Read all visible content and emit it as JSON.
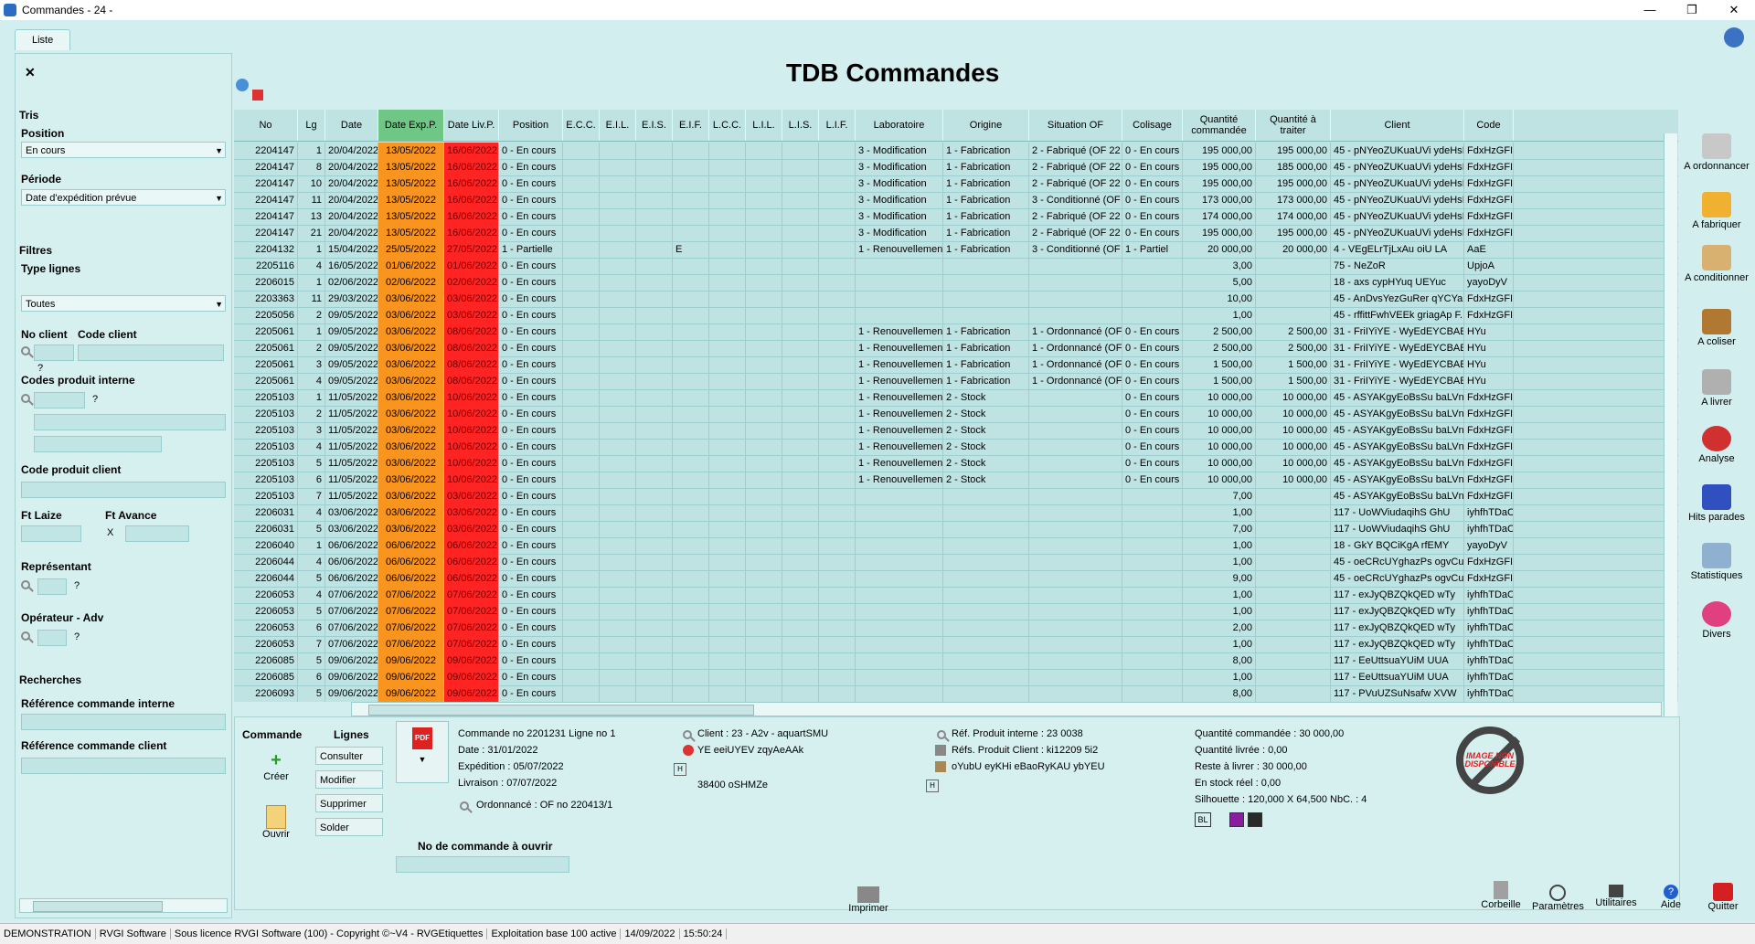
{
  "window": {
    "title": "Commandes - 24 -",
    "controls": [
      "—",
      "❐",
      "✕"
    ]
  },
  "tab": {
    "label": "Liste"
  },
  "header": {
    "title": "TDB Commandes"
  },
  "sidebar": {
    "tris_title": "Tris",
    "position_label": "Position",
    "position_value": "En cours",
    "periode_label": "Période",
    "periode_value": "Date d'expédition prévue",
    "filtres_title": "Filtres",
    "type_lignes_label": "Type lignes",
    "type_lignes_value": "Toutes",
    "no_client_label": "No client",
    "code_client_label": "Code client",
    "codes_produit_label": "Codes produit interne",
    "code_produit_client_label": "Code produit client",
    "ft_laize_label": "Ft Laize",
    "ft_avance_label": "Ft Avance",
    "x_label": "X",
    "representant_label": "Représentant",
    "operateur_label": "Opérateur - Adv",
    "recherches_title": "Recherches",
    "ref_interne_label": "Référence commande interne",
    "ref_client_label": "Référence commande client",
    "q": "?"
  },
  "grid": {
    "columns": [
      "No",
      "Lg",
      "Date",
      "Date Exp.P.",
      "Date Liv.P.",
      "Position",
      "E.C.C.",
      "E.I.L.",
      "E.I.S.",
      "E.I.F.",
      "L.C.C.",
      "L.I.L.",
      "L.I.S.",
      "L.I.F.",
      "Laboratoire",
      "Origine",
      "Situation OF",
      "Colisage",
      "Quantité commandée",
      "Quantité à traiter",
      "Client",
      "Code"
    ],
    "rows": [
      [
        "2204147",
        "1",
        "20/04/2022",
        "13/05/2022",
        "16/06/2022",
        "0 - En cours",
        "",
        "",
        "",
        "",
        "",
        "",
        "",
        "",
        "3 - Modification",
        "1 - Fabrication",
        "2 - Fabriqué (OF 22",
        "0 - En cours",
        "195 000,00",
        "195 000,00",
        "45 - pNYeoZUKuaUVi ydeHsI",
        "FdxHzGFI"
      ],
      [
        "2204147",
        "8",
        "20/04/2022",
        "13/05/2022",
        "16/06/2022",
        "0 - En cours",
        "",
        "",
        "",
        "",
        "",
        "",
        "",
        "",
        "3 - Modification",
        "1 - Fabrication",
        "2 - Fabriqué (OF 22",
        "0 - En cours",
        "195 000,00",
        "185 000,00",
        "45 - pNYeoZUKuaUVi ydeHsI",
        "FdxHzGFI"
      ],
      [
        "2204147",
        "10",
        "20/04/2022",
        "13/05/2022",
        "16/06/2022",
        "0 - En cours",
        "",
        "",
        "",
        "",
        "",
        "",
        "",
        "",
        "3 - Modification",
        "1 - Fabrication",
        "2 - Fabriqué (OF 22",
        "0 - En cours",
        "195 000,00",
        "195 000,00",
        "45 - pNYeoZUKuaUVi ydeHsI",
        "FdxHzGFI"
      ],
      [
        "2204147",
        "11",
        "20/04/2022",
        "13/05/2022",
        "16/06/2022",
        "0 - En cours",
        "",
        "",
        "",
        "",
        "",
        "",
        "",
        "",
        "3 - Modification",
        "1 - Fabrication",
        "3 - Conditionné (OF",
        "0 - En cours",
        "173 000,00",
        "173 000,00",
        "45 - pNYeoZUKuaUVi ydeHsI",
        "FdxHzGFI"
      ],
      [
        "2204147",
        "13",
        "20/04/2022",
        "13/05/2022",
        "16/06/2022",
        "0 - En cours",
        "",
        "",
        "",
        "",
        "",
        "",
        "",
        "",
        "3 - Modification",
        "1 - Fabrication",
        "2 - Fabriqué (OF 22",
        "0 - En cours",
        "174 000,00",
        "174 000,00",
        "45 - pNYeoZUKuaUVi ydeHsI",
        "FdxHzGFI"
      ],
      [
        "2204147",
        "21",
        "20/04/2022",
        "13/05/2022",
        "16/06/2022",
        "0 - En cours",
        "",
        "",
        "",
        "",
        "",
        "",
        "",
        "",
        "3 - Modification",
        "1 - Fabrication",
        "2 - Fabriqué (OF 22",
        "0 - En cours",
        "195 000,00",
        "195 000,00",
        "45 - pNYeoZUKuaUVi ydeHsI",
        "FdxHzGFI"
      ],
      [
        "2204132",
        "1",
        "15/04/2022",
        "25/05/2022",
        "27/05/2022",
        "1 - Partielle",
        "",
        "",
        "",
        "E",
        "",
        "",
        "",
        "",
        "1 - Renouvellement",
        "1 - Fabrication",
        "3 - Conditionné (OF",
        "1 - Partiel",
        "20 000,00",
        "20 000,00",
        "4 - VEgELrTjLxAu oiU LA",
        "AaE"
      ],
      [
        "2205116",
        "4",
        "16/05/2022",
        "01/06/2022",
        "01/06/2022",
        "0 - En cours",
        "",
        "",
        "",
        "",
        "",
        "",
        "",
        "",
        "",
        "",
        "",
        "",
        "3,00",
        "",
        "75 - NeZoR",
        "UpjoA"
      ],
      [
        "2206015",
        "1",
        "02/06/2022",
        "02/06/2022",
        "02/06/2022",
        "0 - En cours",
        "",
        "",
        "",
        "",
        "",
        "",
        "",
        "",
        "",
        "",
        "",
        "",
        "5,00",
        "",
        "18 - axs cypHYuq UEYuc",
        "yayoDyV"
      ],
      [
        "2203363",
        "11",
        "29/03/2022",
        "03/06/2022",
        "03/06/2022",
        "0 - En cours",
        "",
        "",
        "",
        "",
        "",
        "",
        "",
        "",
        "",
        "",
        "",
        "",
        "10,00",
        "",
        "45 - AnDvsYezGuRer qYCYa",
        "FdxHzGFI"
      ],
      [
        "2205056",
        "2",
        "09/05/2022",
        "03/06/2022",
        "03/06/2022",
        "0 - En cours",
        "",
        "",
        "",
        "",
        "",
        "",
        "",
        "",
        "",
        "",
        "",
        "",
        "1,00",
        "",
        "45 - rffittFwhVEEk griagAp F.",
        "FdxHzGFI"
      ],
      [
        "2205061",
        "1",
        "09/05/2022",
        "03/06/2022",
        "08/06/2022",
        "0 - En cours",
        "",
        "",
        "",
        "",
        "",
        "",
        "",
        "",
        "1 - Renouvellement",
        "1 - Fabrication",
        "1 - Ordonnancé (OF",
        "0 - En cours",
        "2 500,00",
        "2 500,00",
        "31 - FriIYiYE - WyEdEYCBAE",
        "HYu"
      ],
      [
        "2205061",
        "2",
        "09/05/2022",
        "03/06/2022",
        "08/06/2022",
        "0 - En cours",
        "",
        "",
        "",
        "",
        "",
        "",
        "",
        "",
        "1 - Renouvellement",
        "1 - Fabrication",
        "1 - Ordonnancé (OF",
        "0 - En cours",
        "2 500,00",
        "2 500,00",
        "31 - FriIYiYE - WyEdEYCBAE",
        "HYu"
      ],
      [
        "2205061",
        "3",
        "09/05/2022",
        "03/06/2022",
        "08/06/2022",
        "0 - En cours",
        "",
        "",
        "",
        "",
        "",
        "",
        "",
        "",
        "1 - Renouvellement",
        "1 - Fabrication",
        "1 - Ordonnancé (OF",
        "0 - En cours",
        "1 500,00",
        "1 500,00",
        "31 - FriIYiYE - WyEdEYCBAE",
        "HYu"
      ],
      [
        "2205061",
        "4",
        "09/05/2022",
        "03/06/2022",
        "08/06/2022",
        "0 - En cours",
        "",
        "",
        "",
        "",
        "",
        "",
        "",
        "",
        "1 - Renouvellement",
        "1 - Fabrication",
        "1 - Ordonnancé (OF",
        "0 - En cours",
        "1 500,00",
        "1 500,00",
        "31 - FriIYiYE - WyEdEYCBAE",
        "HYu"
      ],
      [
        "2205103",
        "1",
        "11/05/2022",
        "03/06/2022",
        "10/06/2022",
        "0 - En cours",
        "",
        "",
        "",
        "",
        "",
        "",
        "",
        "",
        "1 - Renouvellement",
        "2 - Stock",
        "",
        "0 - En cours",
        "10 000,00",
        "10 000,00",
        "45 - ASYAKgyEoBsSu baLVn",
        "FdxHzGFI"
      ],
      [
        "2205103",
        "2",
        "11/05/2022",
        "03/06/2022",
        "10/06/2022",
        "0 - En cours",
        "",
        "",
        "",
        "",
        "",
        "",
        "",
        "",
        "1 - Renouvellement",
        "2 - Stock",
        "",
        "0 - En cours",
        "10 000,00",
        "10 000,00",
        "45 - ASYAKgyEoBsSu baLVn",
        "FdxHzGFI"
      ],
      [
        "2205103",
        "3",
        "11/05/2022",
        "03/06/2022",
        "10/06/2022",
        "0 - En cours",
        "",
        "",
        "",
        "",
        "",
        "",
        "",
        "",
        "1 - Renouvellement",
        "2 - Stock",
        "",
        "0 - En cours",
        "10 000,00",
        "10 000,00",
        "45 - ASYAKgyEoBsSu baLVn",
        "FdxHzGFI"
      ],
      [
        "2205103",
        "4",
        "11/05/2022",
        "03/06/2022",
        "10/06/2022",
        "0 - En cours",
        "",
        "",
        "",
        "",
        "",
        "",
        "",
        "",
        "1 - Renouvellement",
        "2 - Stock",
        "",
        "0 - En cours",
        "10 000,00",
        "10 000,00",
        "45 - ASYAKgyEoBsSu baLVn",
        "FdxHzGFI"
      ],
      [
        "2205103",
        "5",
        "11/05/2022",
        "03/06/2022",
        "10/06/2022",
        "0 - En cours",
        "",
        "",
        "",
        "",
        "",
        "",
        "",
        "",
        "1 - Renouvellement",
        "2 - Stock",
        "",
        "0 - En cours",
        "10 000,00",
        "10 000,00",
        "45 - ASYAKgyEoBsSu baLVn",
        "FdxHzGFI"
      ],
      [
        "2205103",
        "6",
        "11/05/2022",
        "03/06/2022",
        "10/06/2022",
        "0 - En cours",
        "",
        "",
        "",
        "",
        "",
        "",
        "",
        "",
        "1 - Renouvellement",
        "2 - Stock",
        "",
        "0 - En cours",
        "10 000,00",
        "10 000,00",
        "45 - ASYAKgyEoBsSu baLVn",
        "FdxHzGFI"
      ],
      [
        "2205103",
        "7",
        "11/05/2022",
        "03/06/2022",
        "03/06/2022",
        "0 - En cours",
        "",
        "",
        "",
        "",
        "",
        "",
        "",
        "",
        "",
        "",
        "",
        "",
        "7,00",
        "",
        "45 - ASYAKgyEoBsSu baLVn",
        "FdxHzGFI"
      ],
      [
        "2206031",
        "4",
        "03/06/2022",
        "03/06/2022",
        "03/06/2022",
        "0 - En cours",
        "",
        "",
        "",
        "",
        "",
        "",
        "",
        "",
        "",
        "",
        "",
        "",
        "1,00",
        "",
        "117 - UoWViudaqihS GhU",
        "iyhfhTDaC"
      ],
      [
        "2206031",
        "5",
        "03/06/2022",
        "03/06/2022",
        "03/06/2022",
        "0 - En cours",
        "",
        "",
        "",
        "",
        "",
        "",
        "",
        "",
        "",
        "",
        "",
        "",
        "7,00",
        "",
        "117 - UoWViudaqihS GhU",
        "iyhfhTDaC"
      ],
      [
        "2206040",
        "1",
        "06/06/2022",
        "06/06/2022",
        "06/06/2022",
        "0 - En cours",
        "",
        "",
        "",
        "",
        "",
        "",
        "",
        "",
        "",
        "",
        "",
        "",
        "1,00",
        "",
        "18 - GkY BQCiKgA rfEMY",
        "yayoDyV"
      ],
      [
        "2206044",
        "4",
        "06/06/2022",
        "06/06/2022",
        "06/06/2022",
        "0 - En cours",
        "",
        "",
        "",
        "",
        "",
        "",
        "",
        "",
        "",
        "",
        "",
        "",
        "1,00",
        "",
        "45 - oeCRcUYghazPs ogvCu'",
        "FdxHzGFI"
      ],
      [
        "2206044",
        "5",
        "06/06/2022",
        "06/06/2022",
        "06/06/2022",
        "0 - En cours",
        "",
        "",
        "",
        "",
        "",
        "",
        "",
        "",
        "",
        "",
        "",
        "",
        "9,00",
        "",
        "45 - oeCRcUYghazPs ogvCu'",
        "FdxHzGFI"
      ],
      [
        "2206053",
        "4",
        "07/06/2022",
        "07/06/2022",
        "07/06/2022",
        "0 - En cours",
        "",
        "",
        "",
        "",
        "",
        "",
        "",
        "",
        "",
        "",
        "",
        "",
        "1,00",
        "",
        "117 - exJyQBZQkQED wTy",
        "iyhfhTDaC"
      ],
      [
        "2206053",
        "5",
        "07/06/2022",
        "07/06/2022",
        "07/06/2022",
        "0 - En cours",
        "",
        "",
        "",
        "",
        "",
        "",
        "",
        "",
        "",
        "",
        "",
        "",
        "1,00",
        "",
        "117 - exJyQBZQkQED wTy",
        "iyhfhTDaC"
      ],
      [
        "2206053",
        "6",
        "07/06/2022",
        "07/06/2022",
        "07/06/2022",
        "0 - En cours",
        "",
        "",
        "",
        "",
        "",
        "",
        "",
        "",
        "",
        "",
        "",
        "",
        "2,00",
        "",
        "117 - exJyQBZQkQED wTy",
        "iyhfhTDaC"
      ],
      [
        "2206053",
        "7",
        "07/06/2022",
        "07/06/2022",
        "07/06/2022",
        "0 - En cours",
        "",
        "",
        "",
        "",
        "",
        "",
        "",
        "",
        "",
        "",
        "",
        "",
        "1,00",
        "",
        "117 - exJyQBZQkQED wTy",
        "iyhfhTDaC"
      ],
      [
        "2206085",
        "5",
        "09/06/2022",
        "09/06/2022",
        "09/06/2022",
        "0 - En cours",
        "",
        "",
        "",
        "",
        "",
        "",
        "",
        "",
        "",
        "",
        "",
        "",
        "8,00",
        "",
        "117 - EeUttsuaYUiM UUA",
        "iyhfhTDaC"
      ],
      [
        "2206085",
        "6",
        "09/06/2022",
        "09/06/2022",
        "09/06/2022",
        "0 - En cours",
        "",
        "",
        "",
        "",
        "",
        "",
        "",
        "",
        "",
        "",
        "",
        "",
        "1,00",
        "",
        "117 - EeUttsuaYUiM UUA",
        "iyhfhTDaC"
      ],
      [
        "2206093",
        "5",
        "09/06/2022",
        "09/06/2022",
        "09/06/2022",
        "0 - En cours",
        "",
        "",
        "",
        "",
        "",
        "",
        "",
        "",
        "",
        "",
        "",
        "",
        "8,00",
        "",
        "117 - PVuUZSuNsafw XVW",
        "iyhfhTDaC"
      ]
    ]
  },
  "bottom": {
    "commande_title": "Commande",
    "lignes_title": "Lignes",
    "creer": "Créer",
    "ouvrir": "Ouvrir",
    "consulter": "Consulter",
    "modifier": "Modifier",
    "supprimer": "Supprimer",
    "solder": "Solder",
    "pdf": "PDF",
    "commande_info": "Commande no 2201231 Ligne no 1",
    "date": "Date : 31/01/2022",
    "expedition": "Expédition : 05/07/2022",
    "livraison": "Livraison : 07/07/2022",
    "ordonnance": "Ordonnancé : OF no 220413/1",
    "client": "Client : 23 - A2v - aquartSMU",
    "client_contact": "YE eeiUYEV zqyAeAAk",
    "client_ville": "38400 oSHMZe",
    "ref_produit_interne": "Réf. Produit interne : 23 0038",
    "refs_produit_client": "Réfs. Produit Client : ki12209 5i2",
    "produit_desc": "oYubU eyKHi eBaoRyKAU ybYEU",
    "qte_commandee": "Quantité commandée :  30 000,00",
    "qte_livree": "Quantité livrée :        0,00",
    "reste": "Reste à livrer :  30 000,00",
    "stock": "En stock réel :        0,00",
    "silhouette": "Silhouette :      120,000 X      64,500 NbC. : 4",
    "bl": "BL",
    "no_commande_label": "No de commande à ouvrir",
    "no_image_text": "IMAGE NON DISPONIBLE",
    "h_label": "H",
    "color_purple": "#8a1ea0",
    "color_dark": "#2a2a2a"
  },
  "rightbar": {
    "items": [
      "A ordonnancer",
      "A fabriquer",
      "A conditionner",
      "A coliser",
      "A livrer",
      "Analyse",
      "Hits parades",
      "Statistiques",
      "Divers"
    ]
  },
  "bottombar": {
    "imprimer": "Imprimer",
    "corbeille": "Corbeille",
    "parametres": "Paramètres",
    "utilitaires": "Utilitaires",
    "aide": "Aide",
    "quitter": "Quitter"
  },
  "statusbar": [
    "DEMONSTRATION",
    "RVGI Software",
    "Sous licence RVGI Software (100) - Copyright ©~V4 - RVGEtiquettes",
    "Exploitation base 100 active",
    "14/09/2022",
    "15:50:24"
  ]
}
